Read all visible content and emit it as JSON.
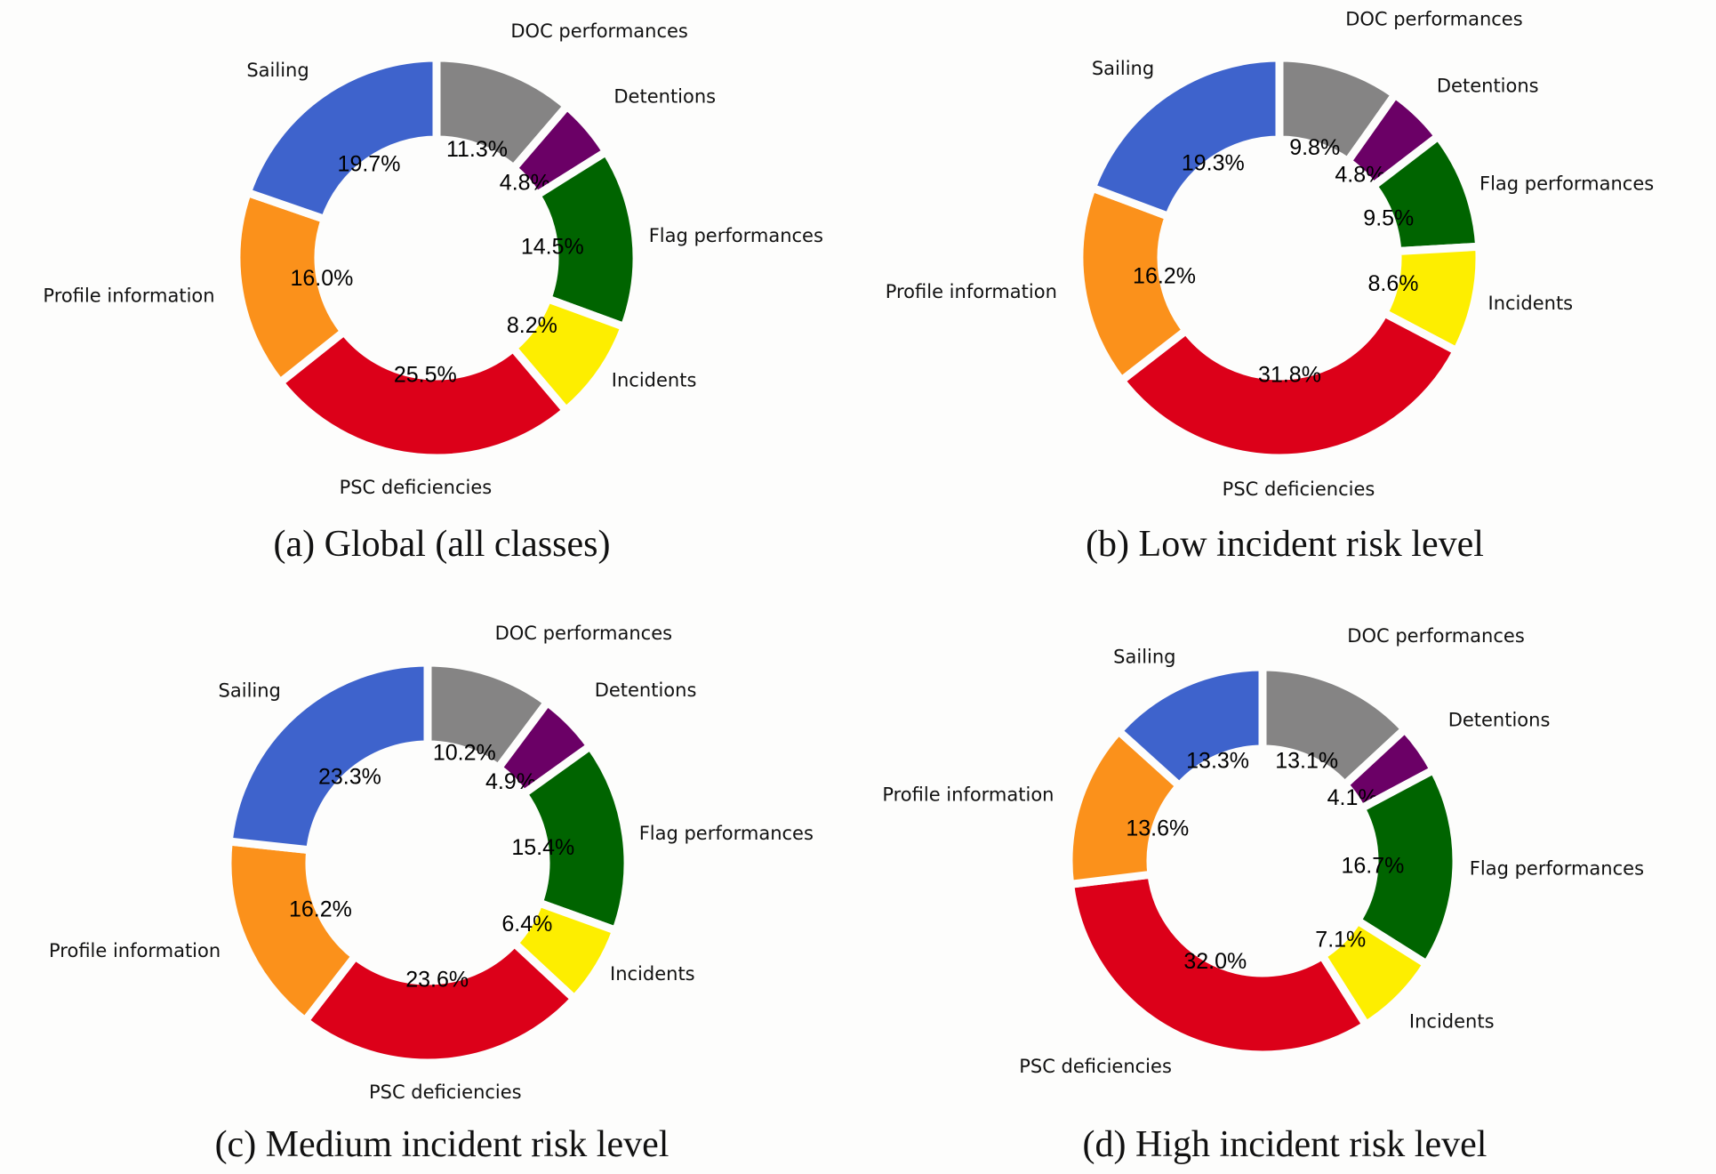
{
  "chart_data": [
    {
      "type": "pie",
      "donut": true,
      "caption": "(a) Global (all classes)",
      "categories": [
        "DOC performances",
        "Detentions",
        "Flag performances",
        "Incidents",
        "PSC deficiencies",
        "Profile information",
        "Sailing"
      ],
      "values": [
        11.3,
        4.8,
        14.5,
        8.2,
        25.5,
        16.0,
        19.7
      ],
      "percent_labels": [
        "11.3%",
        "4.8%",
        "14.5%",
        "8.2%",
        "25.5%",
        "16.0%",
        "19.7%"
      ]
    },
    {
      "type": "pie",
      "donut": true,
      "caption": "(b) Low incident risk level",
      "categories": [
        "DOC performances",
        "Detentions",
        "Flag performances",
        "Incidents",
        "PSC deficiencies",
        "Profile information",
        "Sailing"
      ],
      "values": [
        9.8,
        4.8,
        9.5,
        8.6,
        31.8,
        16.2,
        19.3
      ],
      "percent_labels": [
        "9.8%",
        "4.8%",
        "9.5%",
        "8.6%",
        "31.8%",
        "16.2%",
        "19.3%"
      ]
    },
    {
      "type": "pie",
      "donut": true,
      "caption": "(c) Medium incident risk level",
      "categories": [
        "DOC performances",
        "Detentions",
        "Flag performances",
        "Incidents",
        "PSC deficiencies",
        "Profile information",
        "Sailing"
      ],
      "values": [
        10.2,
        4.9,
        15.4,
        6.4,
        23.6,
        16.2,
        23.3
      ],
      "percent_labels": [
        "10.2%",
        "4.9%",
        "15.4%",
        "6.4%",
        "23.6%",
        "16.2%",
        "23.3%"
      ]
    },
    {
      "type": "pie",
      "donut": true,
      "caption": "(d) High incident risk level",
      "categories": [
        "DOC performances",
        "Detentions",
        "Flag performances",
        "Incidents",
        "PSC deficiencies",
        "Profile information",
        "Sailing"
      ],
      "values": [
        13.1,
        4.1,
        16.7,
        7.1,
        32.0,
        13.6,
        13.3
      ],
      "percent_labels": [
        "13.1%",
        "4.1%",
        "16.7%",
        "7.1%",
        "32.0%",
        "13.6%",
        "13.3%"
      ]
    }
  ],
  "colors": {
    "DOC performances": "#858484",
    "Detentions": "#6b0066",
    "Flag performances": "#006400",
    "Incidents": "#fdee00",
    "PSC deficiencies": "#dc0019",
    "Profile information": "#fb911b",
    "Sailing": "#3e63cc"
  }
}
